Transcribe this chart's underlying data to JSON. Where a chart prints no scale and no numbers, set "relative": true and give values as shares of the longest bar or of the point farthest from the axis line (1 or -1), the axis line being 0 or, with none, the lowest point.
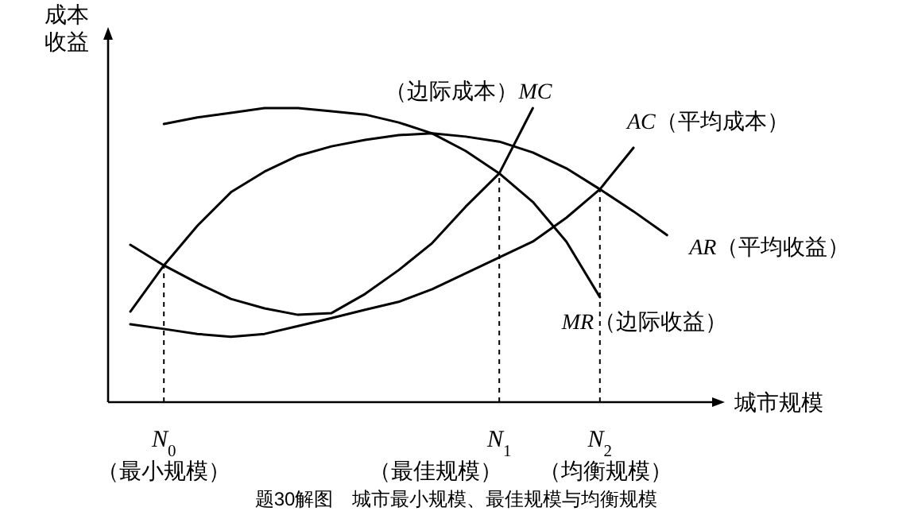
{
  "chart_data": {
    "type": "line",
    "relative": true,
    "title": "题30解图　城市最小规模、最佳规模与均衡规模",
    "ylabel": "成本收益",
    "xlabel": "城市规模",
    "marker": "none",
    "categories": [
      null,
      "*N*$_{0}$",
      null,
      null,
      null,
      null,
      null,
      null,
      null,
      null,
      null,
      "*N*$_{1}$",
      null,
      null,
      "*N*$_{2}$",
      null,
      null
    ],
    "annotations": [
      "（最小规模）",
      "（最佳规模）",
      "（均衡规模）"
    ],
    "ref_lines": [
      {
        "axis": "x",
        "value": "*N*$_{0}$",
        "line_style": "dashed",
        "color": "#000000"
      },
      {
        "axis": "x",
        "value": "*N*$_{1}$",
        "line_style": "dashed",
        "color": "#000000"
      },
      {
        "axis": "x",
        "value": "*N*$_{2}$",
        "line_style": "dashed",
        "color": "#000000"
      }
    ],
    "series": [
      {
        "name": "（边际成本）*MC*",
        "color": "#000000",
        "values": [
          0.535,
          0.465,
          0.405,
          0.351,
          0.319,
          0.297,
          0.303,
          0.368,
          0.449,
          0.541,
          0.665,
          0.778,
          1.0,
          null,
          null,
          null,
          null
        ]
      },
      {
        "name": "*AC*（平均成本）",
        "color": "#000000",
        "values": [
          0.265,
          0.249,
          0.232,
          0.222,
          0.232,
          0.259,
          0.286,
          0.314,
          0.341,
          0.384,
          0.438,
          0.492,
          0.546,
          0.627,
          0.724,
          0.865,
          null
        ]
      },
      {
        "name": "*AR*（平均收益）",
        "color": "#000000",
        "values": [
          0.308,
          0.465,
          0.6,
          0.714,
          0.784,
          0.838,
          0.87,
          0.892,
          0.908,
          0.914,
          0.903,
          0.886,
          0.849,
          0.795,
          0.724,
          0.649,
          0.568
        ]
      },
      {
        "name": "*MR*（边际收益）",
        "color": "#000000",
        "values": [
          null,
          0.946,
          0.968,
          0.984,
          1.0,
          1.0,
          0.989,
          0.978,
          0.951,
          0.914,
          0.854,
          0.778,
          0.681,
          0.546,
          0.357,
          null,
          null
        ]
      }
    ]
  }
}
